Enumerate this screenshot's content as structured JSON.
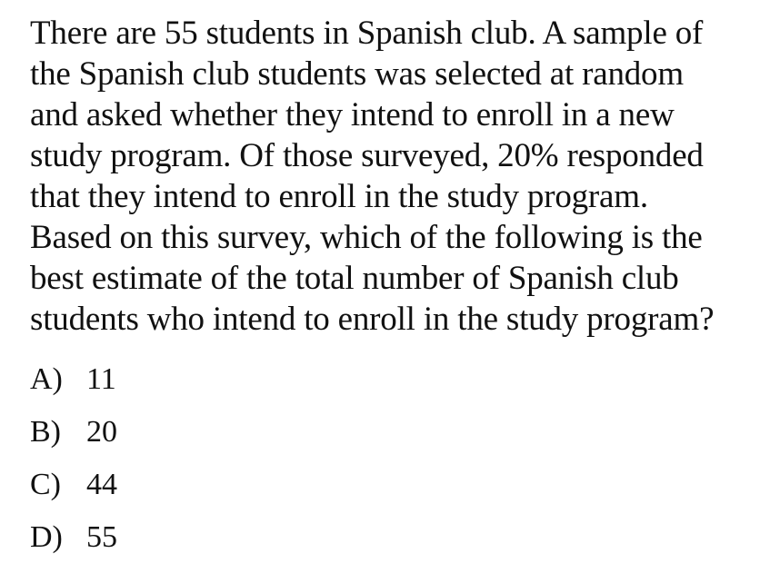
{
  "question": {
    "stem_lines": [
      "There are 55 students in Spanish club. A sample of",
      "the Spanish club students was selected at random",
      "and asked whether they intend to enroll in a new",
      "study program. Of those surveyed, 20% responded",
      "that they intend to enroll in the study program.",
      "Based on this survey, which of the following is the",
      "best estimate of the total number of Spanish club",
      "students who intend to enroll in the study program?"
    ]
  },
  "choices": [
    {
      "letter": "A)",
      "value": "11"
    },
    {
      "letter": "B)",
      "value": "20"
    },
    {
      "letter": "C)",
      "value": "44"
    },
    {
      "letter": "D)",
      "value": "55"
    }
  ]
}
